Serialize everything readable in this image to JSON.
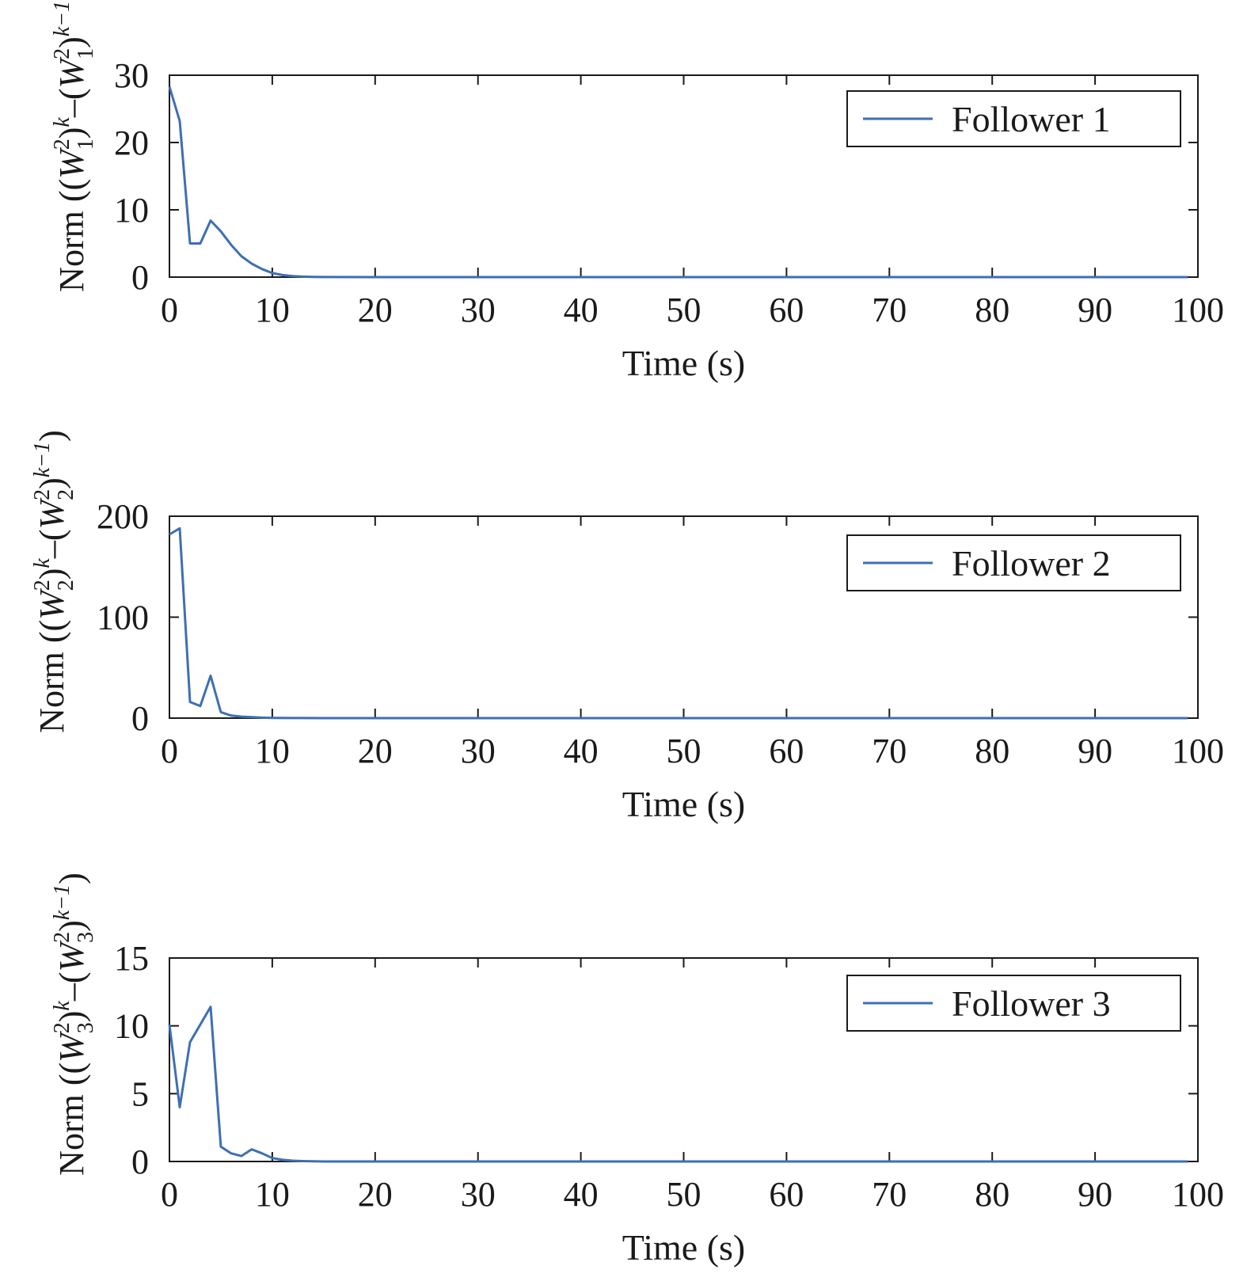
{
  "chart_data": [
    {
      "type": "line",
      "xlabel": "Time (s)",
      "ylabel": {
        "prefix": "Norm ((",
        "sub": "1"
      },
      "xlim": [
        0,
        100
      ],
      "ylim": [
        0,
        30
      ],
      "xticks": [
        0,
        10,
        20,
        30,
        40,
        50,
        60,
        70,
        80,
        90,
        100
      ],
      "yticks": [
        0,
        10,
        20,
        30
      ],
      "legend_position": "top-right",
      "grid": false,
      "series": [
        {
          "name": "Follower 1",
          "color": "#3d6fb4",
          "x": [
            0,
            1,
            2,
            3,
            4,
            5,
            6,
            7,
            8,
            9,
            10,
            11,
            12,
            13,
            14,
            15,
            20,
            30,
            40,
            50,
            60,
            70,
            80,
            90,
            99
          ],
          "y": [
            28.3,
            23.2,
            5.0,
            5.0,
            8.4,
            6.8,
            4.8,
            3.1,
            2.0,
            1.2,
            0.6,
            0.3,
            0.15,
            0.07,
            0.03,
            0.01,
            0,
            0,
            0,
            0,
            0,
            0,
            0,
            0,
            0
          ]
        }
      ]
    },
    {
      "type": "line",
      "xlabel": "Time (s)",
      "ylabel": {
        "prefix": "Norm ((",
        "sub": "2"
      },
      "xlim": [
        0,
        100
      ],
      "ylim": [
        0,
        200
      ],
      "xticks": [
        0,
        10,
        20,
        30,
        40,
        50,
        60,
        70,
        80,
        90,
        100
      ],
      "yticks": [
        0,
        100,
        200
      ],
      "legend_position": "top-right",
      "grid": false,
      "series": [
        {
          "name": "Follower 2",
          "color": "#3d6fb4",
          "x": [
            0,
            1,
            2,
            3,
            4,
            5,
            6,
            7,
            8,
            9,
            10,
            12,
            15,
            20,
            30,
            40,
            50,
            60,
            70,
            80,
            90,
            99
          ],
          "y": [
            182,
            188,
            16,
            12,
            42,
            6,
            2.5,
            1.5,
            1.0,
            0.5,
            0.2,
            0.05,
            0,
            0,
            0,
            0,
            0,
            0,
            0,
            0,
            0,
            0
          ]
        }
      ]
    },
    {
      "type": "line",
      "xlabel": "Time (s)",
      "ylabel": {
        "prefix": "Norm ((",
        "sub": "3"
      },
      "xlim": [
        0,
        100
      ],
      "ylim": [
        0,
        15
      ],
      "xticks": [
        0,
        10,
        20,
        30,
        40,
        50,
        60,
        70,
        80,
        90,
        100
      ],
      "yticks": [
        0,
        5,
        10,
        15
      ],
      "legend_position": "top-right",
      "grid": false,
      "series": [
        {
          "name": "Follower 3",
          "color": "#3d6fb4",
          "x": [
            0,
            1,
            2,
            3,
            4,
            5,
            6,
            7,
            8,
            9,
            10,
            11,
            12,
            13,
            14,
            15,
            20,
            30,
            40,
            50,
            60,
            70,
            80,
            90,
            99
          ],
          "y": [
            10.1,
            4.0,
            8.8,
            10.1,
            11.4,
            1.1,
            0.6,
            0.4,
            0.9,
            0.6,
            0.25,
            0.12,
            0.06,
            0.03,
            0.01,
            0,
            0,
            0,
            0,
            0,
            0,
            0,
            0,
            0,
            0
          ]
        }
      ]
    }
  ]
}
